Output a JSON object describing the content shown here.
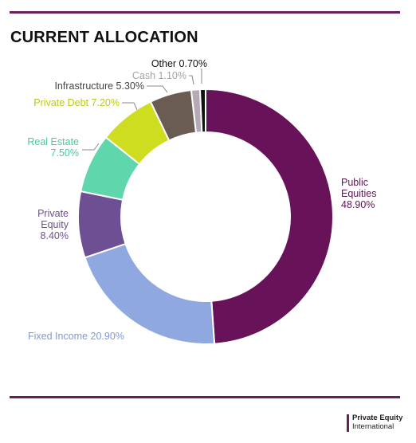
{
  "header": {
    "title": "CURRENT ALLOCATION"
  },
  "footer": {
    "brand_line1": "Private Equity",
    "brand_line2": "International"
  },
  "colors": {
    "rule": "#6a1e5a"
  },
  "chart_data": {
    "type": "pie",
    "title": "CURRENT ALLOCATION",
    "donut": true,
    "series": [
      {
        "name": "Public Equities",
        "value": 48.9,
        "label_lines": [
          "Public",
          "Equities",
          "48.90%"
        ],
        "color": "#68125a",
        "label_color": "#5c1750"
      },
      {
        "name": "Fixed Income",
        "value": 20.9,
        "label_lines": [
          "Fixed Income 20.90%"
        ],
        "color": "#8fa9e0",
        "label_color": "#7f9ad3"
      },
      {
        "name": "Private Equity",
        "value": 8.4,
        "label_lines": [
          "Private",
          "Equity",
          "8.40%"
        ],
        "color": "#6e4f94",
        "label_color": "#6e4f94"
      },
      {
        "name": "Real Estate",
        "value": 7.5,
        "label_lines": [
          "Real Estate",
          "7.50%"
        ],
        "color": "#5fd6ac",
        "label_color": "#3fcf9c"
      },
      {
        "name": "Private Debt",
        "value": 7.2,
        "label_lines": [
          "Private Debt 7.20%"
        ],
        "color": "#cedd20",
        "label_color": "#bcc81a"
      },
      {
        "name": "Infrastructure",
        "value": 5.3,
        "label_lines": [
          "Infrastructure 5.30%"
        ],
        "color": "#6a5c52",
        "label_color": "#444444"
      },
      {
        "name": "Cash",
        "value": 1.1,
        "label_lines": [
          "Cash 1.10%"
        ],
        "color": "#b5a9b5",
        "label_color": "#a89fab"
      },
      {
        "name": "Other",
        "value": 0.7,
        "label_lines": [
          "Other 0.70%"
        ],
        "color": "#111111",
        "label_color": "#111111"
      }
    ]
  }
}
